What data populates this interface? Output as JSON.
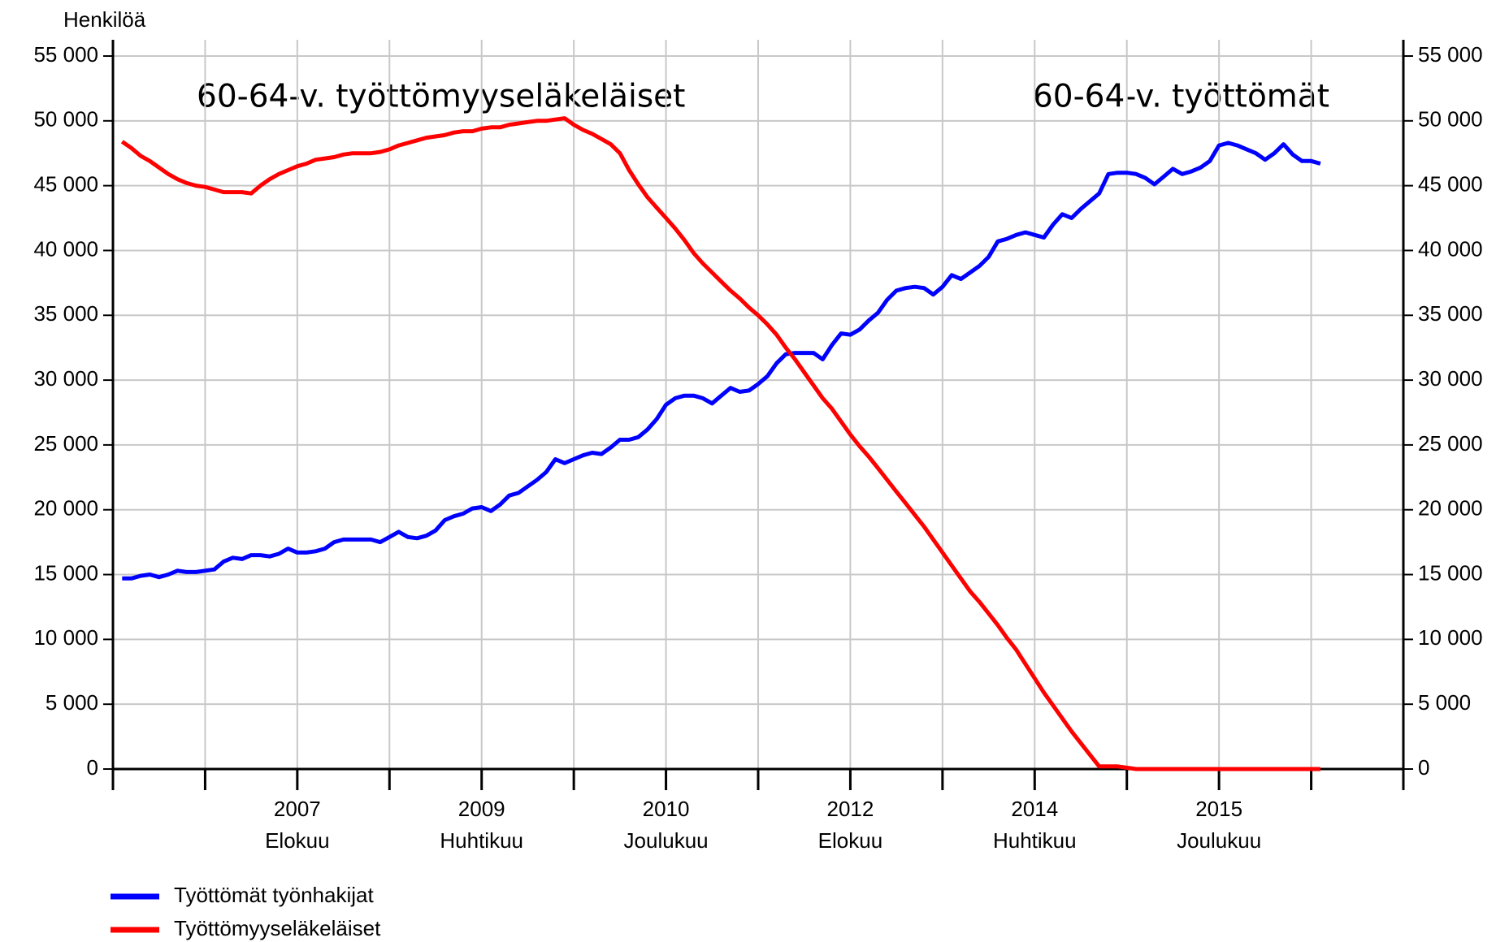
{
  "chart_data": {
    "type": "line",
    "y_label": "Henkilöä",
    "annotations": [
      "60-64-v. työttömyyseläkeläiset",
      "60-64-v. työttömät"
    ],
    "x": [
      "2006-01",
      "2006-02",
      "2006-03",
      "2006-04",
      "2006-05",
      "2006-06",
      "2006-07",
      "2006-08",
      "2006-09",
      "2006-10",
      "2006-11",
      "2006-12",
      "2007-01",
      "2007-02",
      "2007-03",
      "2007-04",
      "2007-05",
      "2007-06",
      "2007-07",
      "2007-08",
      "2007-09",
      "2007-10",
      "2007-11",
      "2007-12",
      "2008-01",
      "2008-02",
      "2008-03",
      "2008-04",
      "2008-05",
      "2008-06",
      "2008-07",
      "2008-08",
      "2008-09",
      "2008-10",
      "2008-11",
      "2008-12",
      "2009-01",
      "2009-02",
      "2009-03",
      "2009-04",
      "2009-05",
      "2009-06",
      "2009-07",
      "2009-08",
      "2009-09",
      "2009-10",
      "2009-11",
      "2009-12",
      "2010-01",
      "2010-02",
      "2010-03",
      "2010-04",
      "2010-05",
      "2010-06",
      "2010-07",
      "2010-08",
      "2010-09",
      "2010-10",
      "2010-11",
      "2010-12",
      "2011-01",
      "2011-02",
      "2011-03",
      "2011-04",
      "2011-05",
      "2011-06",
      "2011-07",
      "2011-08",
      "2011-09",
      "2011-10",
      "2011-11",
      "2011-12",
      "2012-01",
      "2012-02",
      "2012-03",
      "2012-04",
      "2012-05",
      "2012-06",
      "2012-07",
      "2012-08",
      "2012-09",
      "2012-10",
      "2012-11",
      "2012-12",
      "2013-01",
      "2013-02",
      "2013-03",
      "2013-04",
      "2013-05",
      "2013-06",
      "2013-07",
      "2013-08",
      "2013-09",
      "2013-10",
      "2013-11",
      "2013-12",
      "2014-01",
      "2014-02",
      "2014-03",
      "2014-04",
      "2014-05",
      "2014-06",
      "2014-07",
      "2014-08",
      "2014-09",
      "2014-10",
      "2014-11",
      "2014-12",
      "2015-01",
      "2015-02",
      "2015-03",
      "2015-04",
      "2015-05",
      "2015-06",
      "2015-07",
      "2015-08",
      "2015-09",
      "2015-10",
      "2015-11",
      "2015-12",
      "2016-01",
      "2016-02",
      "2016-03",
      "2016-04",
      "2016-05",
      "2016-06",
      "2016-07",
      "2016-08",
      "2016-09",
      "2016-10",
      "2016-11"
    ],
    "series": [
      {
        "name": "Työttömät työnhakijat",
        "color": "#0000ff",
        "values": [
          14700,
          14700,
          14900,
          15000,
          14800,
          15000,
          15300,
          15200,
          15200,
          15300,
          15400,
          16000,
          16300,
          16200,
          16500,
          16500,
          16400,
          16600,
          17000,
          16700,
          16700,
          16800,
          17000,
          17500,
          17700,
          17700,
          17700,
          17700,
          17500,
          17900,
          18300,
          17900,
          17800,
          18000,
          18400,
          19200,
          19500,
          19700,
          20100,
          20200,
          19900,
          20400,
          21100,
          21300,
          21800,
          22300,
          22900,
          23900,
          23600,
          23900,
          24200,
          24400,
          24300,
          24800,
          25400,
          25400,
          25600,
          26200,
          27000,
          28100,
          28600,
          28800,
          28800,
          28600,
          28200,
          28800,
          29400,
          29100,
          29200,
          29700,
          30300,
          31300,
          32000,
          32100,
          32100,
          32100,
          31600,
          32700,
          33600,
          33500,
          33900,
          34600,
          35200,
          36200,
          36900,
          37100,
          37200,
          37100,
          36600,
          37200,
          38100,
          37800,
          38300,
          38800,
          39500,
          40700,
          40900,
          41200,
          41400,
          41200,
          41000,
          42000,
          42800,
          42500,
          43200,
          43800,
          44400,
          45900,
          46000,
          46000,
          45900,
          45600,
          45100,
          45700,
          46300,
          45900,
          46100,
          46400,
          46900,
          48100,
          48300,
          48100,
          47800,
          47500,
          47000,
          47500,
          48200,
          47400,
          46900,
          46900,
          46700
        ]
      },
      {
        "name": "Työttömyyseläkeläiset",
        "color": "#ff0000",
        "values": [
          48400,
          47900,
          47300,
          46900,
          46400,
          45900,
          45500,
          45200,
          45000,
          44900,
          44700,
          44500,
          44500,
          44500,
          44400,
          45000,
          45500,
          45900,
          46200,
          46500,
          46700,
          47000,
          47100,
          47200,
          47400,
          47500,
          47500,
          47500,
          47600,
          47800,
          48100,
          48300,
          48500,
          48700,
          48800,
          48900,
          49100,
          49200,
          49200,
          49400,
          49500,
          49500,
          49700,
          49800,
          49900,
          50000,
          50000,
          50100,
          50200,
          49700,
          49300,
          49000,
          48600,
          48200,
          47500,
          46200,
          45100,
          44100,
          43300,
          42500,
          41700,
          40800,
          39800,
          39000,
          38300,
          37600,
          36900,
          36300,
          35600,
          35000,
          34300,
          33500,
          32500,
          31600,
          30600,
          29600,
          28600,
          27800,
          26800,
          25800,
          24900,
          24100,
          23200,
          22300,
          21400,
          20500,
          19600,
          18700,
          17700,
          16700,
          15700,
          14700,
          13700,
          12900,
          12000,
          11100,
          10100,
          9200,
          8100,
          7000,
          5900,
          4900,
          3900,
          2900,
          2000,
          1100,
          200,
          200,
          200,
          100,
          0,
          0,
          0,
          0,
          0,
          0,
          0,
          0,
          0,
          0,
          0,
          0,
          0,
          0,
          0,
          0,
          0,
          0,
          0,
          0,
          0
        ]
      }
    ],
    "xlim": [
      "2005-12",
      "2017-08"
    ],
    "xticks": [
      "2005-12",
      "2006-10",
      {
        "value": "2007-08",
        "label": [
          "2007",
          "Elokuu"
        ]
      },
      "2008-06",
      {
        "value": "2009-04",
        "label": [
          "2009",
          "Huhtikuu"
        ]
      },
      "2010-02",
      {
        "value": "2010-12",
        "label": [
          "2010",
          "Joulukuu"
        ]
      },
      "2011-10",
      {
        "value": "2012-08",
        "label": [
          "2012",
          "Elokuu"
        ]
      },
      "2013-06",
      {
        "value": "2014-04",
        "label": [
          "2014",
          "Huhtikuu"
        ]
      },
      "2015-02",
      {
        "value": "2015-12",
        "label": [
          "2015",
          "Joulukuu"
        ]
      },
      "2016-10",
      "2017-08"
    ],
    "ylim": [
      0,
      55000
    ],
    "yticks": [
      0,
      {
        "value": 5000,
        "label": "5 000"
      },
      {
        "value": 10000,
        "label": "10 000"
      },
      {
        "value": 15000,
        "label": "15 000"
      },
      {
        "value": 20000,
        "label": "20 000"
      },
      {
        "value": 25000,
        "label": "25 000"
      },
      {
        "value": 30000,
        "label": "30 000"
      },
      {
        "value": 35000,
        "label": "35 000"
      },
      {
        "value": 40000,
        "label": "40 000"
      },
      {
        "value": 45000,
        "label": "45 000"
      },
      {
        "value": 50000,
        "label": "50 000"
      },
      {
        "value": 55000,
        "label": "55 000"
      }
    ],
    "y2lim": [
      0,
      55000
    ],
    "y2ticks": [
      0,
      {
        "value": 5000,
        "label": "5 000"
      },
      {
        "value": 10000,
        "label": "10 000"
      },
      {
        "value": 15000,
        "label": "15 000"
      },
      {
        "value": 20000,
        "label": "20 000"
      },
      {
        "value": 25000,
        "label": "25 000"
      },
      {
        "value": 30000,
        "label": "30 000"
      },
      {
        "value": 35000,
        "label": "35 000"
      },
      {
        "value": 40000,
        "label": "40 000"
      },
      {
        "value": 45000,
        "label": "45 000"
      },
      {
        "value": 50000,
        "label": "50 000"
      },
      {
        "value": 55000,
        "label": "55 000"
      }
    ],
    "grid": true,
    "legend": "bottom-left"
  }
}
